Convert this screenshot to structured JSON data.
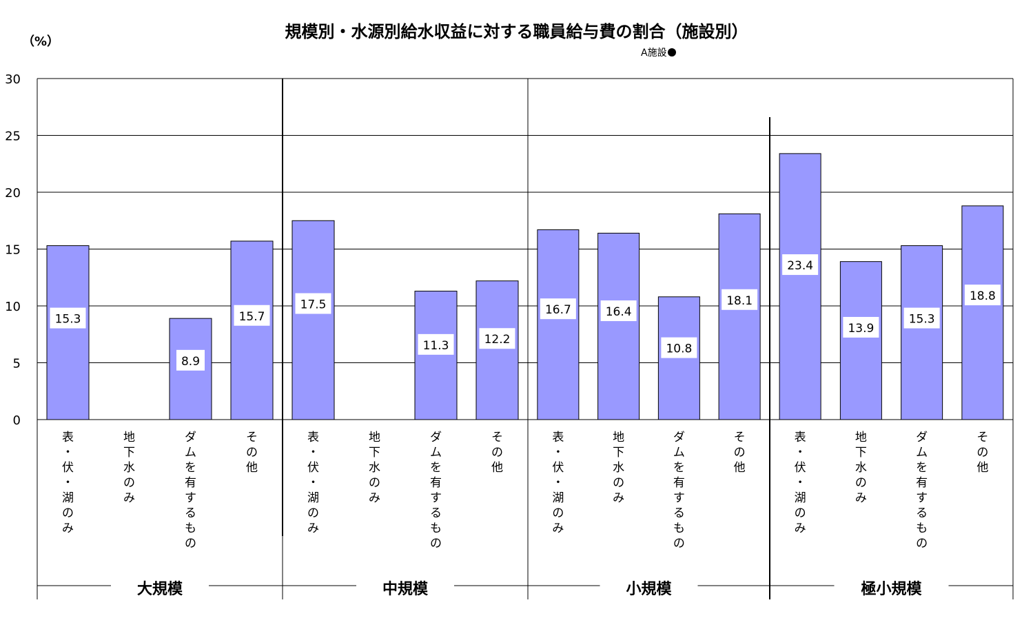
{
  "chart_data": {
    "type": "bar",
    "title": "規模別・水源別給水収益に対する職員給与費の割合（施設別）",
    "ylabel": "（%）",
    "ylim": [
      0,
      30
    ],
    "yticks": [
      0,
      5,
      10,
      15,
      20,
      25,
      30
    ],
    "grid": true,
    "legend": {
      "position": "top-right",
      "label": "A施設",
      "color": "#000000"
    },
    "bar_color": "#9999ff",
    "groups": [
      {
        "label": "大規模",
        "categories": [
          "表・伏・湖のみ",
          "地下水のみ",
          "ダムを有するもの",
          "その他"
        ],
        "values": [
          15.3,
          null,
          8.9,
          15.7
        ]
      },
      {
        "label": "中規模",
        "categories": [
          "表・伏・湖のみ",
          "地下水のみ",
          "ダムを有するもの",
          "その他"
        ],
        "values": [
          17.5,
          null,
          11.3,
          12.2
        ]
      },
      {
        "label": "小規模",
        "categories": [
          "表・伏・湖のみ",
          "地下水のみ",
          "ダムを有するもの",
          "その他"
        ],
        "values": [
          16.7,
          16.4,
          10.8,
          18.1
        ]
      },
      {
        "label": "極小規模",
        "categories": [
          "表・伏・湖のみ",
          "地下水のみ",
          "ダムを有するもの",
          "その他"
        ],
        "values": [
          23.4,
          13.9,
          15.3,
          18.8
        ]
      }
    ]
  }
}
